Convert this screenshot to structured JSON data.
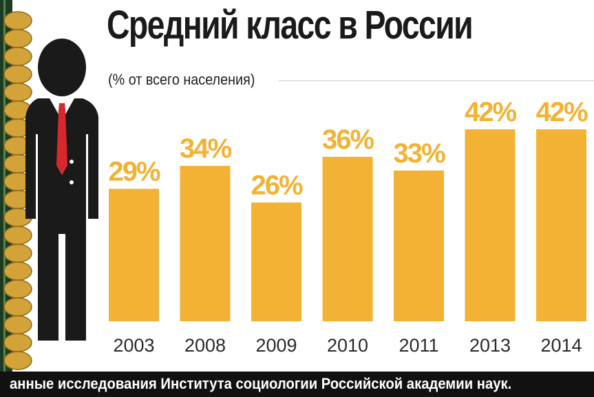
{
  "title": "Средний класс в России",
  "subtitle": "(% от всего населения)",
  "footer": "анные исследования Института социологии Российской академии наук.",
  "colors": {
    "bar": "#f3b233",
    "label": "#f3b233",
    "figure": "#1a1a1a",
    "tie": "#d6282d"
  },
  "icons": {
    "figure": "businessman-figure-icon",
    "coins": "coin-stack-icon"
  },
  "chart_data": {
    "type": "bar",
    "title": "Средний класс в России",
    "subtitle": "(% от всего населения)",
    "categories": [
      "2003",
      "2008",
      "2009",
      "2010",
      "2011",
      "2013",
      "2014"
    ],
    "values": [
      29,
      34,
      26,
      36,
      33,
      42,
      42
    ],
    "value_labels": [
      "29%",
      "34%",
      "26%",
      "36%",
      "33%",
      "42%",
      "42%"
    ],
    "unit": "%",
    "ylim": [
      0,
      42
    ],
    "grid": false,
    "legend": false
  }
}
